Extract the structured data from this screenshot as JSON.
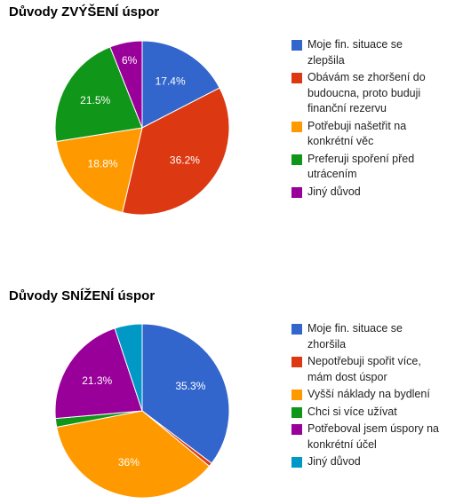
{
  "chart_data": [
    {
      "type": "pie",
      "title": "Důvody ZVÝŠENÍ úspor",
      "categories": [
        "Moje fin. situace se zlepšila",
        "Obávám se zhoršení do budoucna, proto buduji finanční rezervu",
        "Potřebuji našetřit na konkrétní věc",
        "Preferuji spoření před utrácením",
        "Jiný důvod"
      ],
      "values": [
        17.4,
        36.2,
        18.8,
        21.5,
        6
      ],
      "value_labels": [
        "17.4%",
        "36.2%",
        "18.8%",
        "21.5%",
        "6%"
      ],
      "colors": [
        "#3366cc",
        "#dc3912",
        "#ff9900",
        "#109618",
        "#990099"
      ]
    },
    {
      "type": "pie",
      "title": "Důvody SNÍŽENÍ úspor",
      "categories": [
        "Moje fin. situace se zhoršila",
        "Nepotřebuji spořit více, mám dost úspor",
        "Vyšší náklady na bydlení",
        "Chci si více užívat",
        "Potřeboval jsem úspory na konkrétní účel",
        "Jiný důvod"
      ],
      "values": [
        35.3,
        0.7,
        36,
        1.6,
        21.3,
        5.1
      ],
      "value_labels": [
        "35.3%",
        null,
        "36%",
        null,
        "21.3%",
        null
      ],
      "colors": [
        "#3366cc",
        "#dc3912",
        "#ff9900",
        "#109618",
        "#990099",
        "#0099c6"
      ]
    }
  ]
}
